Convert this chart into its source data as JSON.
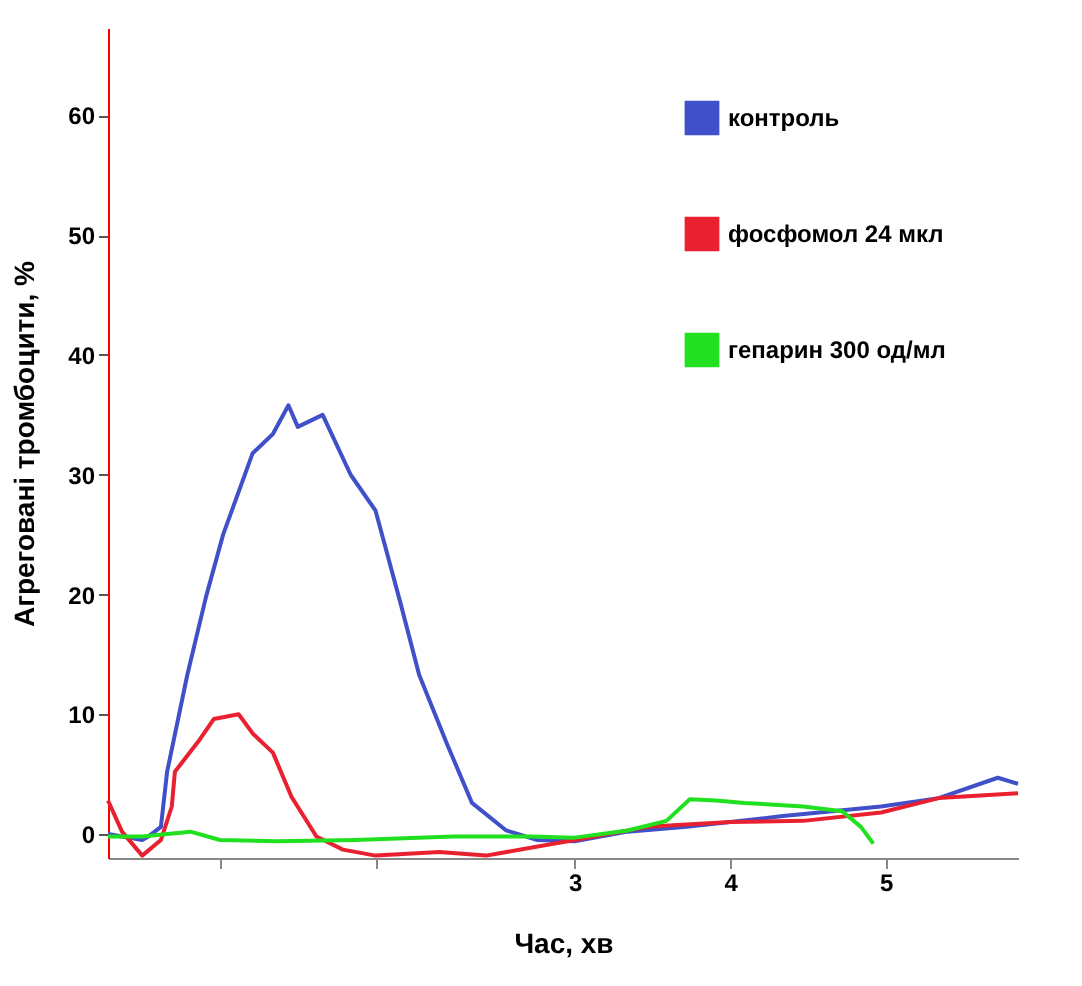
{
  "chart_data": {
    "type": "line",
    "xlabel": "Час, хв",
    "ylabel": "Агреговані тромбоцити, %",
    "xlim": [
      0,
      5.85
    ],
    "ylim": [
      -2,
      67.3
    ],
    "xticks": [
      {
        "value": 0.72,
        "label": null
      },
      {
        "value": 1.72,
        "label": null
      },
      3,
      4,
      5
    ],
    "yticks": [
      0,
      10,
      20,
      30,
      40,
      50,
      60
    ],
    "grid": false,
    "legend": "top right",
    "marker": "none",
    "line_style": "solid",
    "series": [
      {
        "name": "контроль",
        "color": "#4050c8",
        "x": [
          0,
          0.22,
          0.26,
          0.34,
          0.38,
          0.51,
          0.63,
          0.74,
          0.93,
          1.06,
          1.16,
          1.22,
          1.38,
          1.56,
          1.72,
          1.88,
          2.0,
          2.18,
          2.34,
          2.56,
          2.76,
          3.0,
          3.34,
          3.72,
          4.0,
          4.34,
          4.97,
          5.34,
          5.72,
          5.85
        ],
        "values": [
          0,
          -0.5,
          -0.2,
          0.6,
          5.2,
          13.3,
          19.8,
          25,
          31.8,
          33.4,
          35.8,
          34,
          35,
          30,
          27,
          19.3,
          13.3,
          7.5,
          2.6,
          0.3,
          -0.5,
          -0.6,
          0.2,
          0.6,
          1,
          1.5,
          2.3,
          3,
          4.7,
          4.2
        ]
      },
      {
        "name": "фосфомол 24 мкл",
        "color": "#e82030",
        "x": [
          0,
          0.09,
          0.22,
          0.34,
          0.41,
          0.43,
          0.59,
          0.68,
          0.84,
          0.93,
          1.06,
          1.18,
          1.34,
          1.51,
          1.72,
          2.13,
          2.43,
          3.0,
          3.47,
          4.0,
          4.47,
          4.97,
          5.34,
          5.85
        ],
        "values": [
          2.8,
          0.2,
          -1.8,
          -0.5,
          2.3,
          5.2,
          7.9,
          9.6,
          10,
          8.4,
          6.8,
          3.1,
          -0.2,
          -1.3,
          -1.8,
          -1.5,
          -1.8,
          -0.5,
          0.6,
          1,
          1.1,
          1.8,
          3,
          3.4
        ]
      },
      {
        "name": "гепарин 300 од/мл",
        "color": "#20e020",
        "x": [
          0,
          0.22,
          0.53,
          0.72,
          1.09,
          1.59,
          2.22,
          2.72,
          3.0,
          3.34,
          3.59,
          3.74,
          3.91,
          4.09,
          4.47,
          4.72,
          4.84,
          4.92
        ],
        "values": [
          -0.2,
          -0.2,
          0.2,
          -0.5,
          -0.6,
          -0.5,
          -0.2,
          -0.2,
          -0.3,
          0.3,
          1.1,
          2.9,
          2.8,
          2.6,
          2.3,
          1.9,
          0.6,
          -0.8
        ]
      }
    ]
  }
}
